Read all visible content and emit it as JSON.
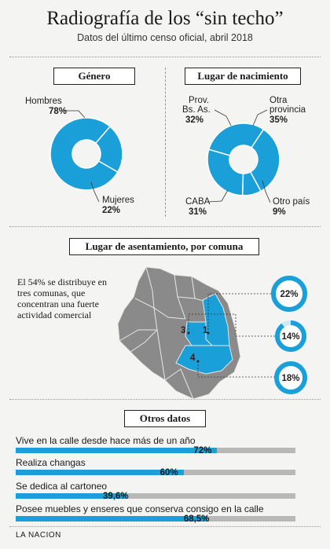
{
  "header": {
    "title": "Radiografía de los “sin techo”",
    "subtitle": "Datos del último censo oficial, abril 2018"
  },
  "colors": {
    "accent": "#1a9fd9",
    "map": "#8a8a8a",
    "track": "#b8b8b8"
  },
  "footer": "LA NACION",
  "sections": {
    "genero": "Género",
    "lugar": "Lugar de nacimiento",
    "asentamiento": "Lugar de asentamiento, por comuna",
    "otros": "Otros datos"
  },
  "map_note": "El 54% se distribuye en tres comunas, que concentran una fuerte actividad comercial",
  "chart_data": [
    {
      "type": "pie",
      "title": "Género",
      "labels": [
        "Hombres",
        "Mujeres"
      ],
      "values": [
        78,
        22
      ],
      "value_labels": [
        "78%",
        "22%"
      ]
    },
    {
      "type": "pie",
      "title": "Lugar de nacimiento",
      "labels": [
        "Prov. Bs. As.",
        "Otra provincia",
        "Otro país",
        "CABA"
      ],
      "values": [
        32,
        35,
        9,
        31
      ],
      "value_labels": [
        "32%",
        "35%",
        "9%",
        "31%"
      ]
    },
    {
      "type": "other",
      "title": "Lugar de asentamiento, por comuna",
      "comunas": [
        "1",
        "3",
        "4"
      ],
      "values": [
        22,
        14,
        18
      ],
      "value_labels": [
        "22%",
        "14%",
        "18%"
      ]
    },
    {
      "type": "bar",
      "title": "Otros datos",
      "categories": [
        "Vive en la calle desde hace más de un año",
        "Realiza changas",
        "Se dedica al cartoneo",
        "Posee muebles y enseres que conserva consigo en la calle"
      ],
      "values": [
        72,
        60,
        39.6,
        68.5
      ],
      "value_labels": [
        "72%",
        "60%",
        "39,6%",
        "68,5%"
      ],
      "xlim": [
        0,
        100
      ]
    }
  ]
}
